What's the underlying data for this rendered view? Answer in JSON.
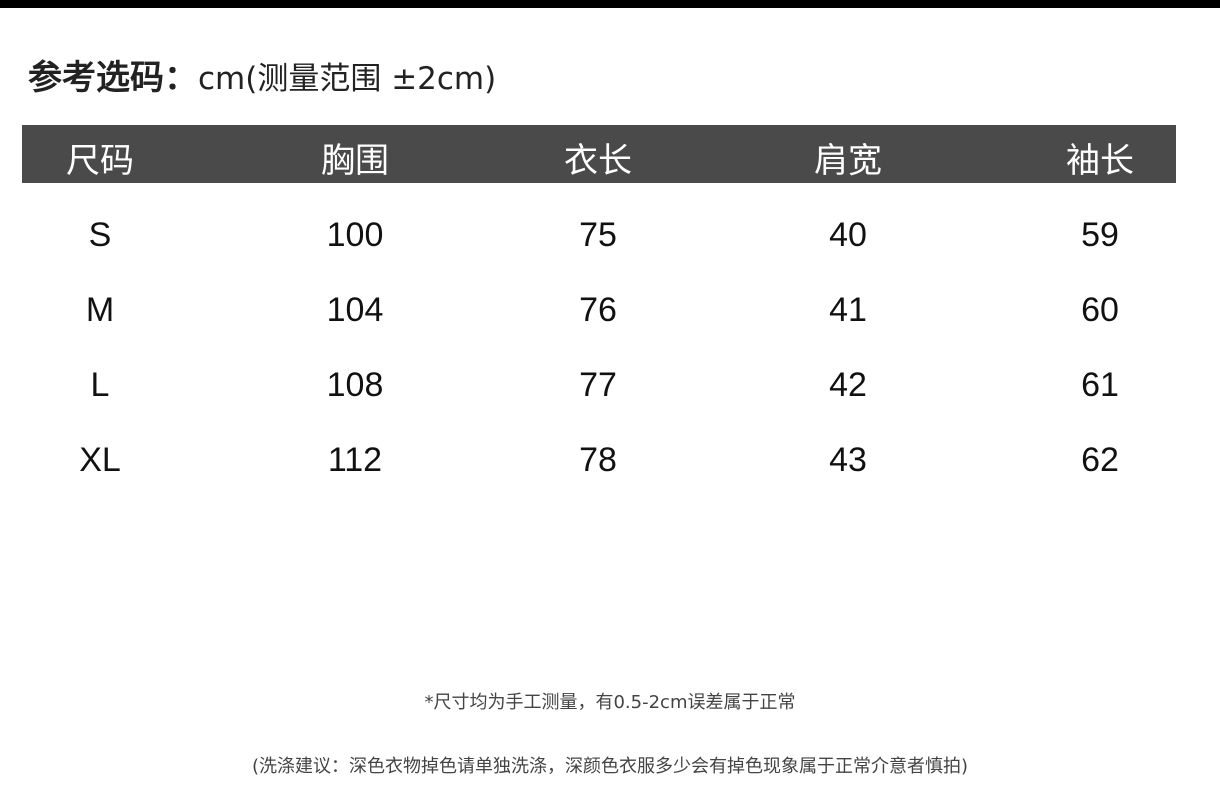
{
  "title": {
    "main": "参考选码：",
    "sub": "cm(测量范围 ±2cm)"
  },
  "table": {
    "headers": [
      "尺码",
      "胸围",
      "衣长",
      "肩宽",
      "袖长"
    ],
    "rows": [
      [
        "S",
        "100",
        "75",
        "40",
        "59"
      ],
      [
        "M",
        "104",
        "76",
        "41",
        "60"
      ],
      [
        "L",
        "108",
        "77",
        "42",
        "61"
      ],
      [
        "XL",
        "112",
        "78",
        "43",
        "62"
      ]
    ]
  },
  "notes": {
    "measurement": "*尺寸均为手工测量，有0.5-2cm误差属于正常",
    "washing": "(洗涤建议：深色衣物掉色请单独洗涤，深颜色衣服多少会有掉色现象属于正常介意者慎拍)"
  },
  "colors": {
    "header_bg": "#4a4a4a",
    "header_text": "#ffffff"
  }
}
